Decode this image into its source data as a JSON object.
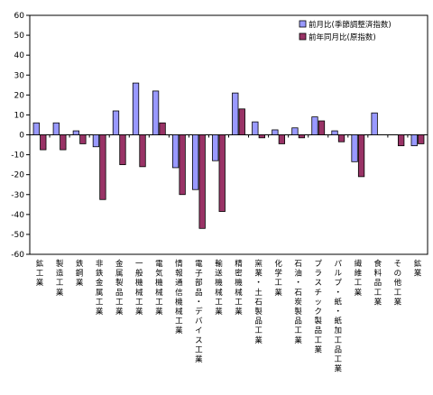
{
  "chart_data": {
    "type": "bar",
    "ylim": [
      -60,
      60
    ],
    "yticks": [
      60,
      50,
      40,
      30,
      20,
      10,
      0,
      -10,
      -20,
      -30,
      -40,
      -50,
      -60
    ],
    "grid": false,
    "legend_position": "top-right",
    "categories": [
      "鉱工業",
      "製造工業",
      "鉄鋼業",
      "非鉄金属工業",
      "金属製品工業",
      "一般機械工業",
      "電気機械工業",
      "情報通信機械工業",
      "電子部品・デバイス工業",
      "輸送機械工業",
      "精密機械工業",
      "窯業・土石製品工業",
      "化学工業",
      "石油・石炭製品工業",
      "プラスチック製品工業",
      "パルプ・紙・紙加工品工業",
      "繊維工業",
      "食料品工業",
      "その他工業",
      "鉱業"
    ],
    "series": [
      {
        "name": "前月比(季節調整済指数)",
        "color": "#9999ff",
        "values": [
          6,
          6,
          2,
          -6,
          12,
          26,
          22,
          -16.5,
          -27.5,
          -13,
          21,
          6.5,
          2.5,
          3.5,
          9,
          2,
          -13.5,
          11,
          0,
          -5.5
        ]
      },
      {
        "name": "前年同月比(原指数)",
        "color": "#993366",
        "values": [
          -7.5,
          -7.5,
          -4.5,
          -32.5,
          -15,
          -16,
          6,
          -30,
          -47,
          -38.5,
          13,
          -1.5,
          -4.5,
          -1.5,
          7,
          -3.5,
          -21,
          0,
          -5.5,
          -4.5
        ]
      }
    ]
  }
}
